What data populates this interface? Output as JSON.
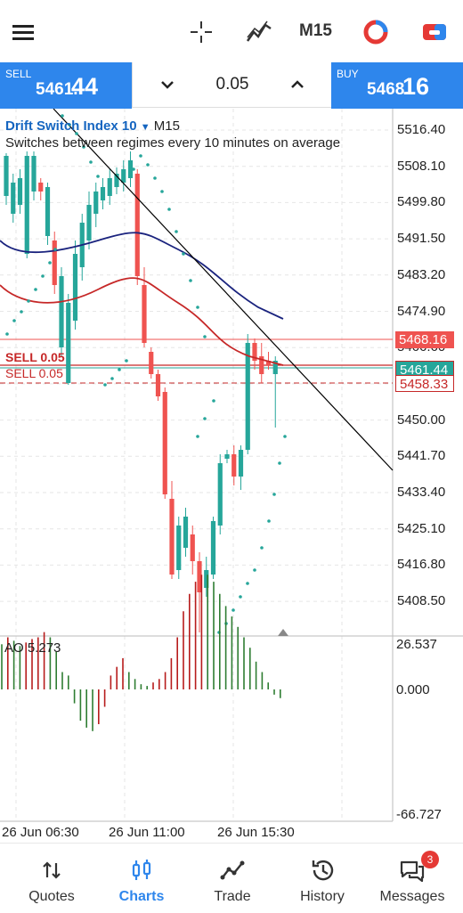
{
  "toolbar": {
    "menu_icon": "hamburger-menu-icon",
    "crosshair_icon": "crosshair-icon",
    "indicators_icon": "indicators-icon",
    "timeframe": "M15",
    "color_icon": "color-scheme-icon",
    "trade_icon": "new-order-icon"
  },
  "trade_bar": {
    "sell_label": "SELL",
    "sell_price_main": "5461.",
    "sell_price_big": "44",
    "lot_value": "0.05",
    "buy_label": "BUY",
    "buy_price_main": "5468.",
    "buy_price_big": "16"
  },
  "chart": {
    "symbol": "Drift Switch Index 10",
    "timeframe": "M15",
    "description": "Switches between regimes every 10 minutes on average",
    "price_axis": [
      "5516.40",
      "5508.10",
      "5499.80",
      "5491.50",
      "5483.20",
      "5474.90",
      "5466.60",
      "5458.30",
      "5450.00",
      "5441.70",
      "5433.40",
      "5425.10",
      "5416.80",
      "5408.50"
    ],
    "price_tags": {
      "buy": "5468.16",
      "sell": "5461.44",
      "order": "5458.33"
    },
    "order_labels": [
      "SELL 0.05",
      "SELL 0.05"
    ],
    "time_axis": [
      "26 Jun 06:30",
      "26 Jun 11:00",
      "26 Jun 15:30"
    ],
    "ao_label": "AO 5.273",
    "ao_axis": [
      "26.537",
      "0.000",
      "-66.727"
    ],
    "colors": {
      "bull": "#26a69a",
      "bear": "#ef5350",
      "ma_red": "#c62828",
      "ma_blue": "#1a237e",
      "sar": "#26a69a",
      "buy_tag": "#ef5350",
      "sell_tag": "#26a69a"
    }
  },
  "nav": {
    "items": [
      {
        "label": "Quotes",
        "icon": "quotes-icon"
      },
      {
        "label": "Charts",
        "icon": "charts-icon"
      },
      {
        "label": "Trade",
        "icon": "trade-icon"
      },
      {
        "label": "History",
        "icon": "history-icon"
      },
      {
        "label": "Messages",
        "icon": "messages-icon",
        "badge": "3"
      }
    ],
    "active": "Charts"
  }
}
